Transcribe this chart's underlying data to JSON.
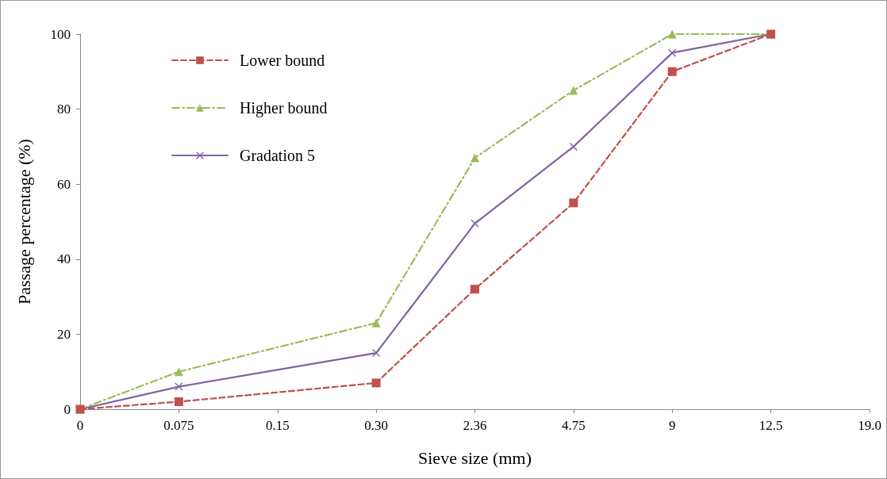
{
  "chart_data": {
    "type": "line",
    "xlabel": "Sieve size (mm)",
    "ylabel": "Passage percentage (%)",
    "categories": [
      "0",
      "0.075",
      "0.15",
      "0.30",
      "2.36",
      "4.75",
      "9",
      "12.5",
      "19.0"
    ],
    "ylim": [
      0,
      100
    ],
    "yticks": [
      0,
      20,
      40,
      60,
      80,
      100
    ],
    "grid": false,
    "legend": "top left",
    "series": [
      {
        "name": "Lower bound",
        "color": "#c0504d",
        "marker": "square",
        "line_style": "dashed",
        "values": [
          0,
          2,
          null,
          7,
          32,
          55,
          90,
          100,
          null
        ]
      },
      {
        "name": "Higher bound",
        "color": "#9bbb59",
        "marker": "triangle",
        "line_style": "dashdot",
        "values": [
          0,
          10,
          null,
          23,
          67,
          85,
          100,
          100,
          null
        ]
      },
      {
        "name": "Gradation 5",
        "color": "#8064a2",
        "marker": "cross",
        "line_style": "solid",
        "values": [
          0,
          6,
          null,
          15,
          49.5,
          70,
          95,
          100,
          null
        ]
      }
    ]
  }
}
